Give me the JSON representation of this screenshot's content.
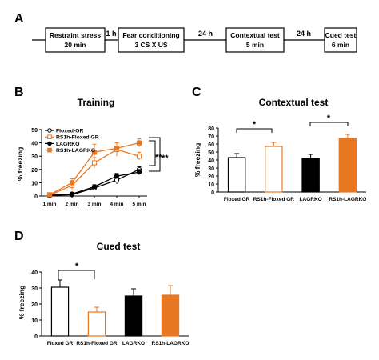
{
  "panels": {
    "A": {
      "letter": "A",
      "steps": [
        {
          "line1": "Restraint stress",
          "line2": "20 min"
        },
        {
          "line1": "Fear conditioning",
          "line2": "3 CS X US"
        },
        {
          "line1": "Contextual test",
          "line2": "5 min"
        },
        {
          "line1": "Cued test",
          "line2": "6 min"
        }
      ],
      "gaps": [
        "1 h",
        "24 h",
        "24 h"
      ]
    },
    "B": {
      "letter": "B",
      "significance": [
        "**",
        "**"
      ]
    },
    "C": {
      "letter": "C",
      "significance": [
        "*",
        "*"
      ]
    },
    "D": {
      "letter": "D",
      "significance": [
        "*"
      ]
    }
  },
  "colors": {
    "orange": "#E87722",
    "black": "#000000",
    "gray": "#333333"
  },
  "chart_data": [
    {
      "panel": "B",
      "type": "line",
      "title": "Training",
      "xlabel": "",
      "ylabel": "% freezing",
      "categories": [
        "1 min",
        "2 min",
        "3 min",
        "4 min",
        "5 min"
      ],
      "ylim": [
        0,
        50
      ],
      "yticks": [
        0,
        10,
        20,
        30,
        40,
        50
      ],
      "legend_position": "top-left",
      "series": [
        {
          "name": "Floxed-GR",
          "values": [
            0.5,
            1,
            6,
            12,
            20
          ],
          "errors": [
            0.5,
            1,
            1.5,
            3,
            2
          ],
          "color": "#000000",
          "marker": "open-circle",
          "line": "solid"
        },
        {
          "name": "RS1h-Floxed GR",
          "values": [
            0.5,
            8,
            25,
            35,
            30
          ],
          "errors": [
            0.5,
            3,
            4,
            5,
            3
          ],
          "color": "#E87722",
          "marker": "open-square",
          "line": "solid"
        },
        {
          "name": "LAGRKO",
          "values": [
            0.5,
            1.5,
            7,
            15,
            18
          ],
          "errors": [
            0.5,
            1,
            1.5,
            2,
            2
          ],
          "color": "#000000",
          "marker": "filled-circle",
          "line": "solid"
        },
        {
          "name": "RS1h-LAGRKO",
          "values": [
            1,
            10,
            33,
            36,
            40
          ],
          "errors": [
            0.5,
            3,
            6,
            4,
            3
          ],
          "color": "#E87722",
          "marker": "filled-square",
          "line": "solid"
        }
      ]
    },
    {
      "panel": "C",
      "type": "bar",
      "title": "Contextual test",
      "xlabel": "",
      "ylabel": "% freezing",
      "categories": [
        "Floxed GR",
        "RS1h-Floxed GR",
        "LAGRKO",
        "RS1h-LAGRKO"
      ],
      "values": [
        43,
        57,
        42,
        67
      ],
      "errors": [
        5,
        5,
        5,
        5
      ],
      "bar_styles": [
        "open-black",
        "open-orange",
        "filled-black",
        "filled-orange"
      ],
      "ylim": [
        0,
        80
      ],
      "yticks": [
        0,
        10,
        20,
        30,
        40,
        50,
        60,
        70,
        80
      ]
    },
    {
      "panel": "D",
      "type": "bar",
      "title": "Cued test",
      "xlabel": "",
      "ylabel": "% freezing",
      "categories": [
        "Floxed GR",
        "RS1h-Floxed GR",
        "LAGRKO",
        "RS1h-LAGRKO"
      ],
      "values": [
        30.5,
        15,
        25,
        25.5
      ],
      "errors": [
        4.5,
        3,
        4.5,
        6
      ],
      "bar_styles": [
        "open-black",
        "open-orange",
        "filled-black",
        "filled-orange"
      ],
      "ylim": [
        0,
        40
      ],
      "yticks": [
        0,
        10,
        20,
        30,
        40
      ]
    }
  ]
}
